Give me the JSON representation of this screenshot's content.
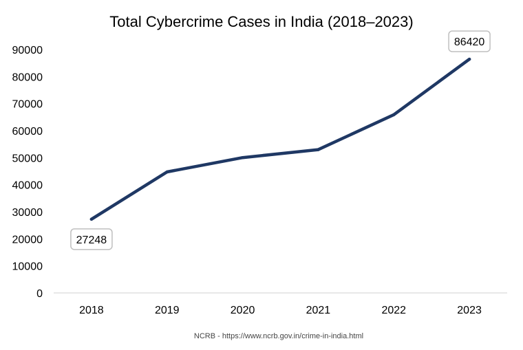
{
  "chart_data": {
    "type": "line",
    "title": "Total Cybercrime Cases in India (2018–2023)",
    "categories": [
      "2018",
      "2019",
      "2020",
      "2021",
      "2022",
      "2023"
    ],
    "series": [
      {
        "name": "Total Cybercrime Cases",
        "values": [
          27248,
          44735,
          50035,
          52974,
          65893,
          86420
        ],
        "color": "#1f3864"
      }
    ],
    "data_labels": [
      {
        "index": 0,
        "text": "27248",
        "placement": "below"
      },
      {
        "index": 5,
        "text": "86420",
        "placement": "above"
      }
    ],
    "ylim": [
      0,
      90000
    ],
    "yticks": [
      0,
      10000,
      20000,
      30000,
      40000,
      50000,
      60000,
      70000,
      80000,
      90000
    ],
    "ytick_labels": [
      "0",
      "10000",
      "20000",
      "30000",
      "40000",
      "50000",
      "60000",
      "70000",
      "80000",
      "90000"
    ],
    "xlabel": "",
    "ylabel": "",
    "grid": false,
    "source": "NCRB - https://www.ncrb.gov.in/crime-in-india.html"
  }
}
